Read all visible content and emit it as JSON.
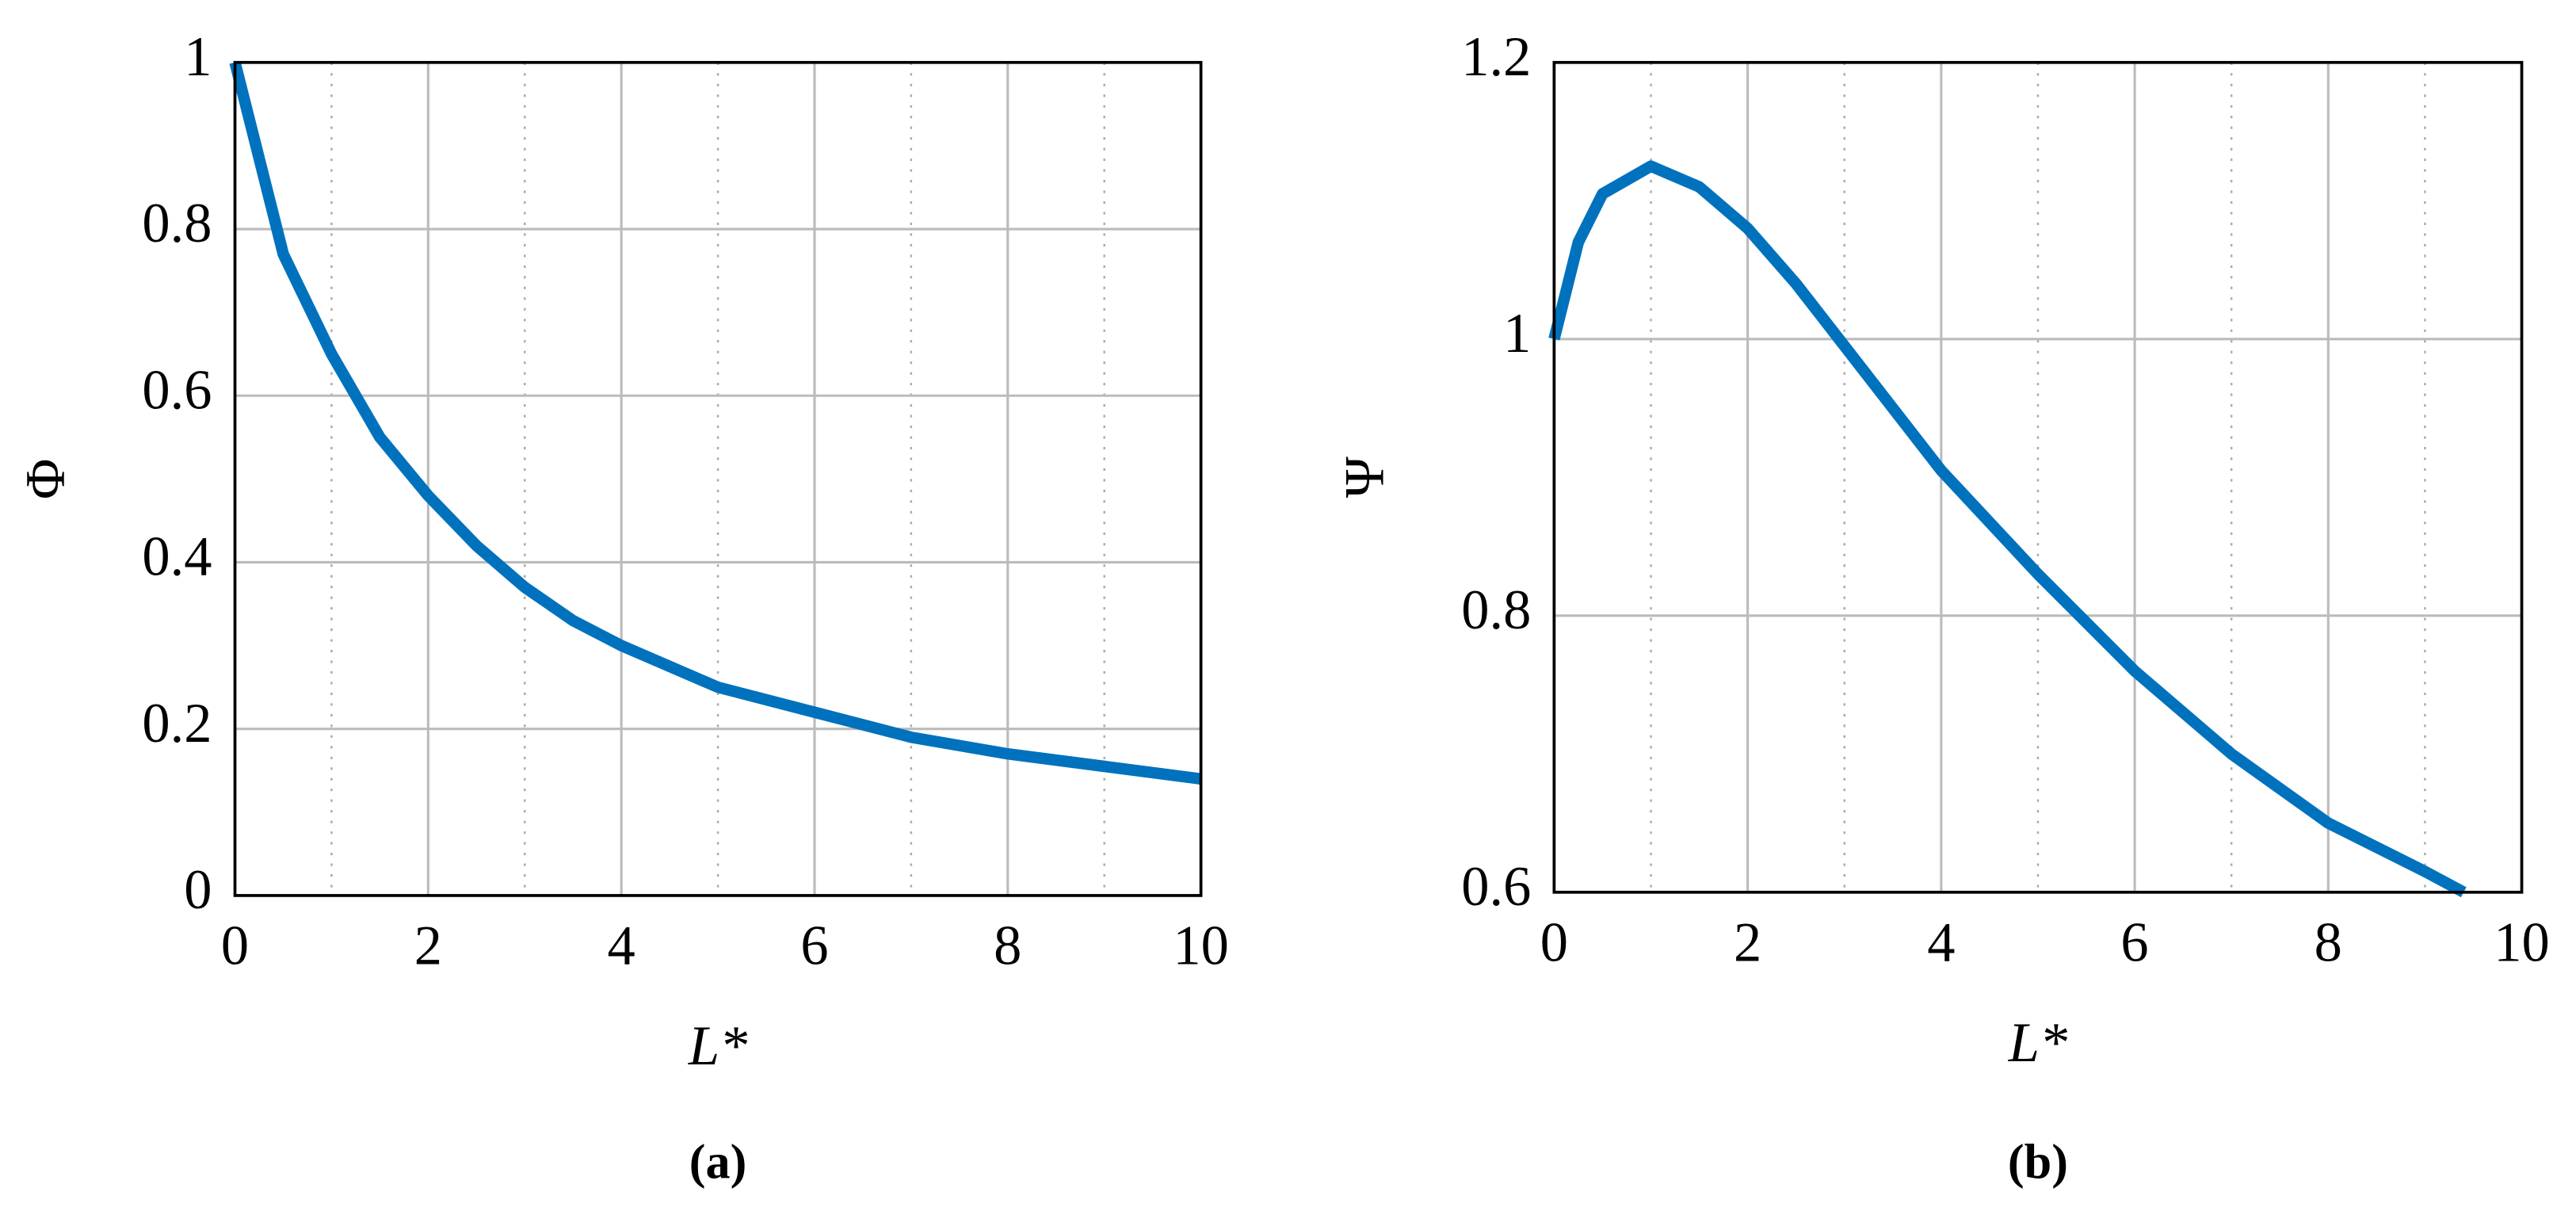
{
  "chart_data": [
    {
      "type": "line",
      "caption": "(a)",
      "xlabel": "L*",
      "ylabel": "Φ",
      "x": [
        0,
        0.5,
        1,
        1.5,
        2,
        2.5,
        3,
        3.5,
        4,
        5,
        6,
        7,
        8,
        9,
        10
      ],
      "series": [
        {
          "name": "Φ",
          "color": "#0072bd",
          "values": [
            1,
            0.77,
            0.65,
            0.55,
            0.48,
            0.42,
            0.37,
            0.33,
            0.3,
            0.25,
            0.22,
            0.19,
            0.17,
            0.155,
            0.14
          ]
        }
      ],
      "xlim": [
        0,
        10
      ],
      "ylim": [
        0,
        1
      ],
      "xticks": [
        0,
        2,
        4,
        6,
        8,
        10
      ],
      "yticks": [
        0,
        0.2,
        0.4,
        0.6,
        0.8,
        1
      ],
      "xminor": [
        1,
        3,
        5,
        7,
        9
      ],
      "grid": true
    },
    {
      "type": "line",
      "caption": "(b)",
      "xlabel": "L*",
      "ylabel": "Ψ",
      "x": [
        0,
        0.25,
        0.5,
        1,
        1.5,
        2,
        2.5,
        3,
        4,
        5,
        6,
        7,
        8,
        9,
        9.4
      ],
      "series": [
        {
          "name": "Ψ",
          "color": "#0072bd",
          "values": [
            1,
            1.07,
            1.105,
            1.125,
            1.11,
            1.08,
            1.04,
            0.995,
            0.905,
            0.83,
            0.76,
            0.7,
            0.65,
            0.615,
            0.6
          ]
        }
      ],
      "xlim": [
        0,
        10
      ],
      "ylim": [
        0.6,
        1.2
      ],
      "xticks": [
        0,
        2,
        4,
        6,
        8,
        10
      ],
      "yticks": [
        0.6,
        0.8,
        1,
        1.2
      ],
      "xminor": [
        1,
        3,
        5,
        7,
        9
      ],
      "grid": true
    }
  ]
}
